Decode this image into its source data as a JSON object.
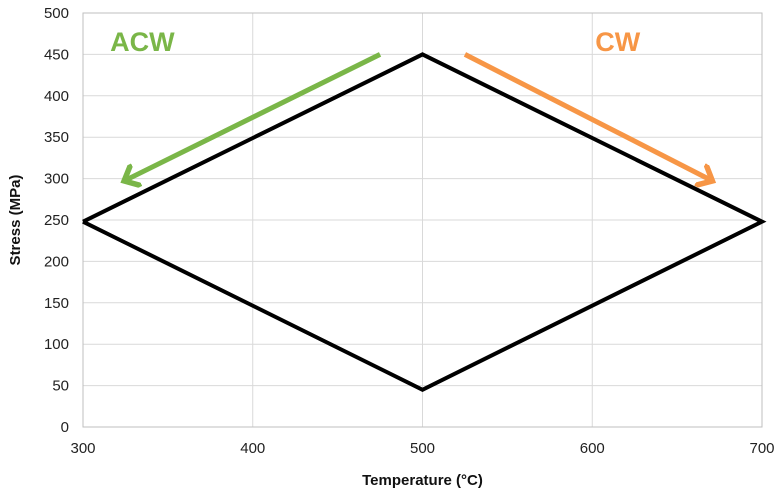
{
  "chart_data": {
    "type": "line",
    "title": "",
    "xlabel": "Temperature (°C)",
    "ylabel": "Stress (MPa)",
    "xlim": [
      300,
      700
    ],
    "ylim": [
      0,
      500
    ],
    "xticks": [
      300,
      400,
      500,
      600,
      700
    ],
    "yticks": [
      0,
      50,
      100,
      150,
      200,
      250,
      300,
      350,
      400,
      450,
      500
    ],
    "grid": true,
    "series": [
      {
        "color": "#000000",
        "x": [
          300,
          500,
          700,
          500,
          300
        ],
        "y": [
          248,
          450,
          248,
          45,
          248
        ]
      }
    ],
    "annotations": [
      {
        "text": "ACW",
        "color": "#7ab648",
        "x": 335,
        "y": 465,
        "arrow_from": [
          475,
          450
        ],
        "arrow_to": [
          325,
          298
        ]
      },
      {
        "text": "CW",
        "color": "#f79646",
        "x": 615,
        "y": 465,
        "arrow_from": [
          525,
          450
        ],
        "arrow_to": [
          670,
          298
        ]
      }
    ]
  }
}
